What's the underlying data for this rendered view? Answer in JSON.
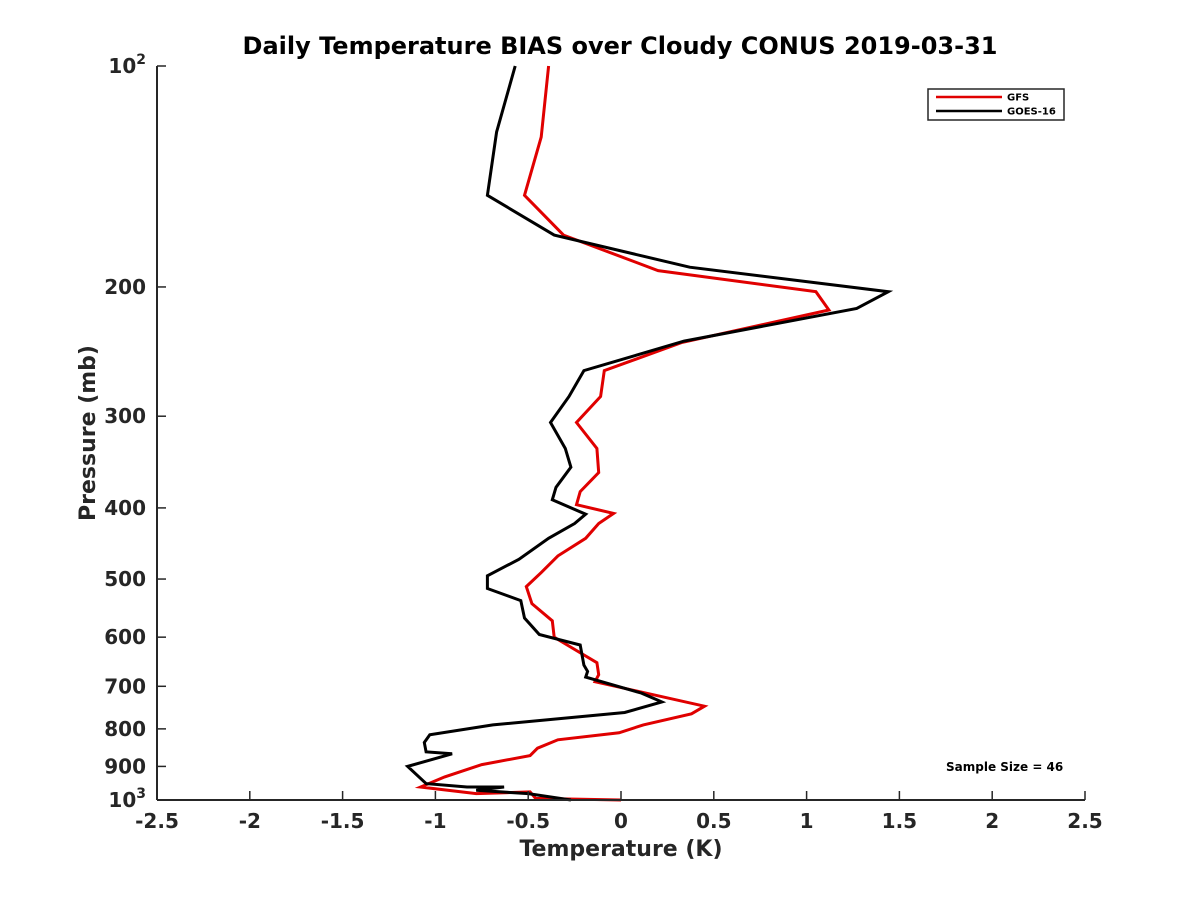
{
  "chart_data": {
    "type": "line",
    "title": "Daily Temperature BIAS over Cloudy CONUS 2019-03-31",
    "xlabel": "Temperature (K)",
    "ylabel": "Pressure (mb)",
    "xlim": [
      -2.5,
      2.5
    ],
    "ylim": [
      100,
      1000
    ],
    "yscale": "log",
    "y_reversed": true,
    "xticks": [
      -2.5,
      -2,
      -1.5,
      -1,
      -0.5,
      0,
      0.5,
      1,
      1.5,
      2,
      2.5
    ],
    "xtick_labels": [
      "-2.5",
      "-2",
      "-1.5",
      "-1",
      "-0.5",
      "0",
      "0.5",
      "1",
      "1.5",
      "2",
      "2.5"
    ],
    "yticks": [
      {
        "value": 100,
        "base": "10",
        "exp": "2"
      },
      {
        "value": 200,
        "label": "200"
      },
      {
        "value": 300,
        "label": "300"
      },
      {
        "value": 400,
        "label": "400"
      },
      {
        "value": 500,
        "label": "500"
      },
      {
        "value": 600,
        "label": "600"
      },
      {
        "value": 700,
        "label": "700"
      },
      {
        "value": 800,
        "label": "800"
      },
      {
        "value": 900,
        "label": "900"
      },
      {
        "value": 1000,
        "base": "10",
        "exp": "3"
      }
    ],
    "grid": false,
    "legend_position": "top-right",
    "annotation": "Sample Size = 46",
    "series": [
      {
        "name": "GFS",
        "color": "#e00000",
        "x": [
          -0.39,
          -0.43,
          -0.52,
          -0.31,
          0.2,
          1.05,
          1.12,
          0.33,
          -0.09,
          -0.11,
          -0.24,
          -0.13,
          -0.12,
          -0.22,
          -0.24,
          -0.04,
          -0.12,
          -0.19,
          -0.34,
          -0.43,
          -0.51,
          -0.48,
          -0.37,
          -0.36,
          -0.29,
          -0.13,
          -0.12,
          -0.14,
          0.45,
          0.38,
          0.12,
          -0.01,
          -0.34,
          -0.45,
          -0.49,
          -0.75,
          -0.95,
          -1.08,
          -0.78,
          -0.49,
          -0.46,
          0
        ],
        "y": [
          100,
          125,
          150,
          170,
          190,
          203,
          215,
          238,
          260,
          282,
          306,
          332,
          358,
          380,
          396,
          407,
          420,
          440,
          465,
          490,
          512,
          540,
          570,
          600,
          615,
          650,
          675,
          690,
          745,
          763,
          790,
          810,
          828,
          850,
          870,
          895,
          930,
          960,
          980,
          975,
          995,
          1000
        ]
      },
      {
        "name": "GOES-16",
        "color": "#000000",
        "x": [
          -0.57,
          -0.67,
          -0.72,
          -0.36,
          0.37,
          1.44,
          1.27,
          0.34,
          -0.2,
          -0.28,
          -0.38,
          -0.3,
          -0.27,
          -0.35,
          -0.37,
          -0.19,
          -0.25,
          -0.39,
          -0.55,
          -0.72,
          -0.72,
          -0.54,
          -0.52,
          -0.44,
          -0.22,
          -0.2,
          -0.18,
          -0.19,
          0.11,
          0.22,
          0.02,
          -0.69,
          -1.03,
          -1.06,
          -1.05,
          -0.91,
          -1.15,
          -1.05,
          -0.83,
          -0.63,
          -0.78,
          -0.5,
          -0.27
        ],
        "y": [
          100,
          123,
          150,
          170,
          188,
          203,
          214,
          237,
          260,
          282,
          306,
          332,
          352,
          375,
          390,
          408,
          420,
          440,
          470,
          495,
          515,
          535,
          565,
          595,
          615,
          655,
          668,
          680,
          715,
          735,
          760,
          790,
          815,
          835,
          860,
          865,
          900,
          950,
          960,
          960,
          970,
          980,
          1000
        ]
      }
    ]
  }
}
